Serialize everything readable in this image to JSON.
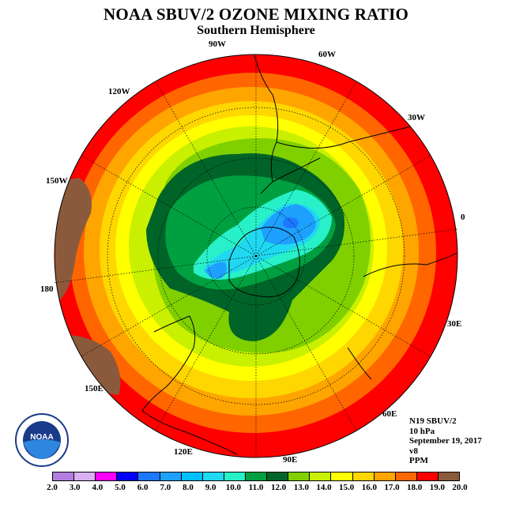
{
  "title": "NOAA SBUV/2 OZONE MIXING RATIO",
  "subtitle": "Southern Hemisphere",
  "longitude_labels": {
    "lon_90w": "90W",
    "lon_60w": "60W",
    "lon_120w": "120W",
    "lon_30w": "30W",
    "lon_150w": "150W",
    "lon_0": "0",
    "lon_180": "180",
    "lon_30e": "30E",
    "lon_150e": "150E",
    "lon_60e": "60E",
    "lon_120e": "120E",
    "lon_90e": "90E"
  },
  "info": {
    "satellite": "N19 SBUV/2",
    "level": "10 hPa",
    "date": "September 19, 2017",
    "version": "v8",
    "units": "PPM"
  },
  "logo": {
    "text": "NOAA",
    "ring_text": "NATIONAL OCEANIC AND ATMOSPHERIC ADMINISTRATION · U.S. DEPARTMENT OF COMMERCE"
  },
  "colorbar": {
    "ticks": [
      "2.0",
      "3.0",
      "4.0",
      "5.0",
      "6.0",
      "7.0",
      "8.0",
      "9.0",
      "10.0",
      "11.0",
      "12.0",
      "13.0",
      "14.0",
      "15.0",
      "16.0",
      "17.0",
      "18.0",
      "19.0",
      "20.0"
    ],
    "colors": [
      "#b27fe0",
      "#d8b0f0",
      "#ff00ff",
      "#0000ff",
      "#1e78ff",
      "#1ea0ff",
      "#00bfff",
      "#20d8f0",
      "#28f0c8",
      "#00a040",
      "#006428",
      "#80d000",
      "#c8f000",
      "#ffff00",
      "#ffd700",
      "#ffa500",
      "#ff6600",
      "#ff0000",
      "#8b5a3c"
    ]
  }
}
